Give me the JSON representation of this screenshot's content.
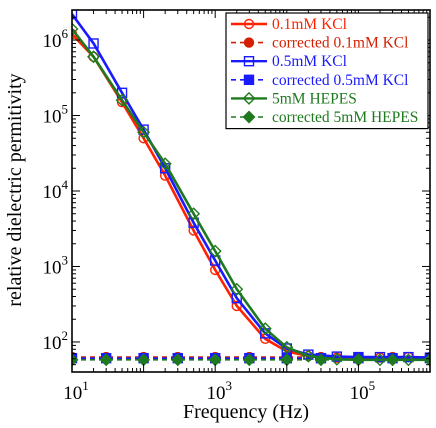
{
  "chart_data": {
    "type": "line",
    "xlabel": "Frequency (Hz)",
    "ylabel": "relative dielectric permitivity",
    "x_scale": "log",
    "y_scale": "log",
    "xlim": [
      10,
      1000000
    ],
    "ylim": [
      40,
      2500000
    ],
    "x_ticks": [
      {
        "value": 10,
        "base": "10",
        "exp": "1"
      },
      {
        "value": 1000,
        "base": "10",
        "exp": "3"
      },
      {
        "value": 100000,
        "base": "10",
        "exp": "5"
      }
    ],
    "y_ticks": [
      {
        "value": 100,
        "base": "10",
        "exp": "2"
      },
      {
        "value": 1000,
        "base": "10",
        "exp": "3"
      },
      {
        "value": 10000,
        "base": "10",
        "exp": "4"
      },
      {
        "value": 100000,
        "base": "10",
        "exp": "5"
      },
      {
        "value": 1000000,
        "base": "10",
        "exp": "6"
      }
    ],
    "grid": false,
    "legend_position": "top-right",
    "series": [
      {
        "name": "0.1mM KCl",
        "color": "#ff2200",
        "marker": "open-circle",
        "dashed": false,
        "x": [
          10,
          20,
          50,
          100,
          200,
          500,
          1000,
          2000,
          5000,
          10000,
          20000,
          50000,
          100000,
          200000,
          500000,
          1000000
        ],
        "y": [
          1200000,
          600000,
          150000,
          50000,
          16000,
          3000,
          900,
          300,
          110,
          75,
          65,
          62,
          62,
          62,
          63,
          62
        ]
      },
      {
        "name": "corrected 0.1mM KCl",
        "color": "#d42000",
        "marker": "filled-circle",
        "dashed": true,
        "x": [
          10,
          30,
          100,
          300,
          1000,
          3000,
          10000,
          30000,
          100000,
          300000,
          1000000
        ],
        "y": [
          63,
          63,
          63,
          63,
          63,
          63,
          63,
          63,
          63,
          63,
          63
        ]
      },
      {
        "name": "0.5mM KCl",
        "color": "#1a1aff",
        "marker": "open-square",
        "dashed": false,
        "x": [
          10,
          20,
          50,
          100,
          200,
          500,
          1000,
          2000,
          5000,
          10000,
          20000,
          50000,
          100000,
          200000,
          500000,
          1000000
        ],
        "y": [
          2200000,
          900000,
          200000,
          65000,
          20000,
          3800,
          1200,
          380,
          130,
          82,
          68,
          64,
          63,
          63,
          63,
          62
        ]
      },
      {
        "name": "corrected 0.5mM KCl",
        "color": "#1a1aff",
        "marker": "filled-square",
        "dashed": true,
        "x": [
          10,
          30,
          100,
          300,
          1000,
          3000,
          10000,
          30000,
          100000,
          300000,
          1000000
        ],
        "y": [
          61,
          61,
          61,
          61,
          61,
          61,
          61,
          61,
          61,
          61,
          61
        ]
      },
      {
        "name": "5mM HEPES",
        "color": "#1f7a1f",
        "marker": "open-diamond",
        "dashed": false,
        "x": [
          10,
          20,
          50,
          100,
          200,
          500,
          1000,
          2000,
          5000,
          10000,
          20000,
          50000,
          100000,
          200000,
          500000,
          1000000
        ],
        "y": [
          1400000,
          600000,
          160000,
          60000,
          23000,
          5000,
          1600,
          500,
          150,
          85,
          65,
          59,
          58,
          58,
          58,
          58
        ]
      },
      {
        "name": "corrected 5mM HEPES",
        "color": "#1f7a1f",
        "marker": "filled-diamond",
        "dashed": true,
        "x": [
          10,
          30,
          100,
          300,
          1000,
          3000,
          10000,
          30000,
          100000,
          300000,
          1000000
        ],
        "y": [
          58,
          58,
          58,
          58,
          58,
          58,
          58,
          58,
          58,
          58,
          58
        ]
      }
    ]
  }
}
